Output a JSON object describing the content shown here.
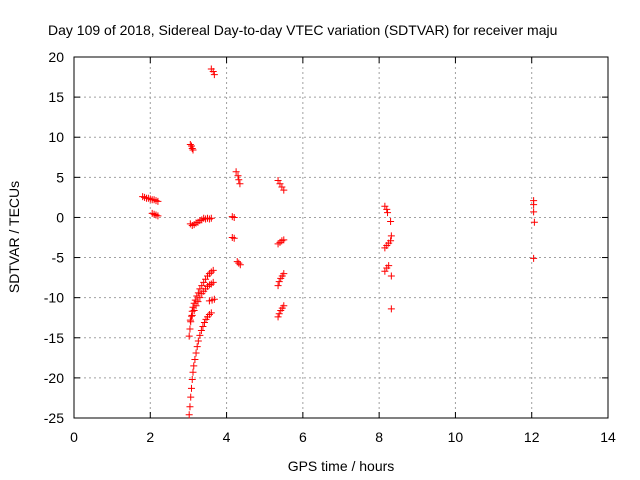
{
  "chart_data": {
    "type": "scatter",
    "title": "Day 109 of 2018, Sidereal Day-to-day VTEC variation (SDTVAR) for receiver maju",
    "xlabel": "GPS time / hours",
    "ylabel": "SDTVAR / TECUs",
    "xlim": [
      0,
      14
    ],
    "ylim": [
      -25,
      20
    ],
    "xticks": [
      0,
      2,
      4,
      6,
      8,
      10,
      12,
      14
    ],
    "yticks": [
      -25,
      -20,
      -15,
      -10,
      -5,
      0,
      5,
      10,
      15,
      20
    ],
    "grid": true,
    "marker": "+",
    "color": "#ff0000",
    "series": [
      {
        "name": "SDTVAR",
        "points": [
          [
            1.8,
            2.6
          ],
          [
            1.85,
            2.5
          ],
          [
            1.9,
            2.4
          ],
          [
            1.95,
            2.4
          ],
          [
            2.0,
            2.3
          ],
          [
            2.05,
            2.2
          ],
          [
            2.1,
            2.2
          ],
          [
            2.15,
            2.1
          ],
          [
            2.2,
            2.0
          ],
          [
            2.05,
            0.5
          ],
          [
            2.1,
            0.4
          ],
          [
            2.15,
            0.3
          ],
          [
            2.2,
            0.2
          ],
          [
            3.05,
            9.1
          ],
          [
            3.08,
            8.9
          ],
          [
            3.1,
            8.6
          ],
          [
            3.12,
            8.4
          ],
          [
            3.05,
            -0.8
          ],
          [
            3.1,
            -1.0
          ],
          [
            3.15,
            -0.9
          ],
          [
            3.2,
            -0.7
          ],
          [
            3.25,
            -0.6
          ],
          [
            3.3,
            -0.4
          ],
          [
            3.35,
            -0.3
          ],
          [
            3.4,
            -0.1
          ],
          [
            3.45,
            -0.2
          ],
          [
            3.5,
            -0.1
          ],
          [
            3.55,
            -0.2
          ],
          [
            3.6,
            -0.1
          ],
          [
            3.6,
            18.5
          ],
          [
            3.65,
            18.2
          ],
          [
            3.68,
            17.8
          ],
          [
            3.02,
            -14.8
          ],
          [
            3.04,
            -13.9
          ],
          [
            3.06,
            -13.0
          ],
          [
            3.08,
            -12.3
          ],
          [
            3.1,
            -11.7
          ],
          [
            3.12,
            -11.2
          ],
          [
            3.15,
            -10.7
          ],
          [
            3.18,
            -10.3
          ],
          [
            3.22,
            -9.8
          ],
          [
            3.26,
            -9.4
          ],
          [
            3.3,
            -8.9
          ],
          [
            3.35,
            -8.5
          ],
          [
            3.4,
            -8.1
          ],
          [
            3.45,
            -7.7
          ],
          [
            3.5,
            -7.3
          ],
          [
            3.55,
            -7.0
          ],
          [
            3.6,
            -6.8
          ],
          [
            3.65,
            -6.6
          ],
          [
            3.05,
            -12.8
          ],
          [
            3.1,
            -12.2
          ],
          [
            3.15,
            -11.6
          ],
          [
            3.2,
            -11.0
          ],
          [
            3.25,
            -10.5
          ],
          [
            3.3,
            -10.0
          ],
          [
            3.35,
            -9.5
          ],
          [
            3.4,
            -9.2
          ],
          [
            3.45,
            -8.9
          ],
          [
            3.5,
            -8.6
          ],
          [
            3.55,
            -8.4
          ],
          [
            3.6,
            -8.3
          ],
          [
            3.65,
            -8.1
          ],
          [
            3.02,
            -24.6
          ],
          [
            3.04,
            -23.6
          ],
          [
            3.06,
            -22.4
          ],
          [
            3.08,
            -21.3
          ],
          [
            3.1,
            -20.2
          ],
          [
            3.12,
            -19.3
          ],
          [
            3.14,
            -18.5
          ],
          [
            3.17,
            -17.7
          ],
          [
            3.2,
            -16.9
          ],
          [
            3.23,
            -16.1
          ],
          [
            3.26,
            -15.4
          ],
          [
            3.3,
            -14.7
          ],
          [
            3.34,
            -14.1
          ],
          [
            3.38,
            -13.6
          ],
          [
            3.42,
            -13.1
          ],
          [
            3.46,
            -12.7
          ],
          [
            3.5,
            -12.4
          ],
          [
            3.55,
            -12.1
          ],
          [
            3.6,
            -11.9
          ],
          [
            3.55,
            -10.4
          ],
          [
            3.62,
            -10.3
          ],
          [
            3.68,
            -10.2
          ],
          [
            4.15,
            0.1
          ],
          [
            4.2,
            0.0
          ],
          [
            4.15,
            -2.5
          ],
          [
            4.2,
            -2.6
          ],
          [
            4.25,
            5.7
          ],
          [
            4.3,
            5.2
          ],
          [
            4.32,
            4.7
          ],
          [
            4.35,
            4.2
          ],
          [
            4.28,
            -5.5
          ],
          [
            4.32,
            -5.7
          ],
          [
            4.36,
            -5.9
          ],
          [
            5.35,
            4.6
          ],
          [
            5.4,
            4.2
          ],
          [
            5.45,
            3.8
          ],
          [
            5.5,
            3.4
          ],
          [
            5.35,
            -3.3
          ],
          [
            5.4,
            -3.1
          ],
          [
            5.45,
            -2.9
          ],
          [
            5.5,
            -2.8
          ],
          [
            5.35,
            -8.5
          ],
          [
            5.38,
            -8.0
          ],
          [
            5.42,
            -7.6
          ],
          [
            5.46,
            -7.3
          ],
          [
            5.5,
            -7.0
          ],
          [
            5.35,
            -12.4
          ],
          [
            5.38,
            -12.0
          ],
          [
            5.42,
            -11.6
          ],
          [
            5.46,
            -11.3
          ],
          [
            5.5,
            -11.0
          ],
          [
            8.15,
            1.4
          ],
          [
            8.2,
            1.0
          ],
          [
            8.22,
            0.6
          ],
          [
            8.3,
            -0.5
          ],
          [
            8.15,
            -3.8
          ],
          [
            8.2,
            -3.5
          ],
          [
            8.25,
            -3.2
          ],
          [
            8.3,
            -2.9
          ],
          [
            8.32,
            -2.3
          ],
          [
            8.15,
            -6.7
          ],
          [
            8.2,
            -6.3
          ],
          [
            8.25,
            -6.0
          ],
          [
            8.32,
            -7.3
          ],
          [
            8.32,
            -11.4
          ],
          [
            12.05,
            2.1
          ],
          [
            12.05,
            1.6
          ],
          [
            12.05,
            0.7
          ],
          [
            12.07,
            -0.6
          ],
          [
            12.05,
            -5.1
          ]
        ]
      }
    ]
  }
}
